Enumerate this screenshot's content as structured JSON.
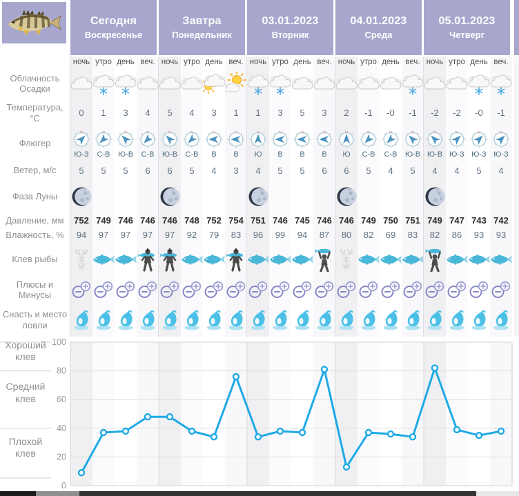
{
  "colors": {
    "header_purple": "#a7a7ce",
    "accent_blue": "#1fa9e5",
    "fish_teal": "#49b7d8",
    "plusminus_purple": "#8787c8",
    "grid_gray": "#d8d8d8"
  },
  "times": [
    "ночь",
    "утро",
    "день",
    "веч."
  ],
  "labels": {
    "clouds": [
      "Облачность",
      "Осадки"
    ],
    "temperature": [
      "Температура,",
      "°С"
    ],
    "vane": [
      "Флюгер"
    ],
    "wind": [
      "Ветер, м/с"
    ],
    "moon": [
      "Фаза Луны"
    ],
    "pressure": [
      "Давление, мм"
    ],
    "humidity": [
      "Влажность, %"
    ],
    "bite": [
      "Клев рыбы"
    ],
    "plusminus": [
      "Плюсы и",
      "Минусы"
    ],
    "tackle": [
      "Снасть и место",
      "ловли"
    ]
  },
  "days": [
    {
      "title": "Сегодня",
      "subtitle": "Воскресенье",
      "clouds": [
        "cloud",
        "cloud-snow",
        "cloud-snow",
        "cloud"
      ],
      "temperature": [
        "0",
        "1",
        "3",
        "4"
      ],
      "wind_direction": [
        "Ю-З",
        "С-В",
        "Ю-В",
        "С-В"
      ],
      "wind_speed": [
        "5",
        "5",
        "5",
        "6"
      ],
      "moon_phase_col": 0,
      "pressure": [
        "752",
        "749",
        "746",
        "746"
      ],
      "humidity": [
        "94",
        "97",
        "97",
        "97"
      ],
      "fish_bite": [
        "crayfish",
        "fish",
        "fish",
        "angler-carry"
      ]
    },
    {
      "title": "Завтра",
      "subtitle": "Понедельник",
      "clouds": [
        "cloud",
        "cloud",
        "cloud-sun",
        "sun-cloud"
      ],
      "temperature": [
        "5",
        "4",
        "3",
        "1"
      ],
      "wind_direction": [
        "Ю-В",
        "С-В",
        "В",
        "В"
      ],
      "wind_speed": [
        "6",
        "5",
        "4",
        "3"
      ],
      "moon_phase_col": 0,
      "pressure": [
        "746",
        "748",
        "752",
        "754"
      ],
      "humidity": [
        "97",
        "92",
        "79",
        "83"
      ],
      "fish_bite": [
        "angler-carry",
        "fish",
        "fish",
        "angler-carry"
      ]
    },
    {
      "title": "03.01.2023",
      "subtitle": "Вторник",
      "clouds": [
        "cloud-snow",
        "cloud-snow",
        "cloud",
        "cloud"
      ],
      "temperature": [
        "1",
        "3",
        "5",
        "3"
      ],
      "wind_direction": [
        "Ю",
        "В",
        "В",
        "В"
      ],
      "wind_speed": [
        "4",
        "5",
        "5",
        "6"
      ],
      "moon_phase_col": 0,
      "pressure": [
        "751",
        "746",
        "745",
        "746"
      ],
      "humidity": [
        "96",
        "99",
        "94",
        "87"
      ],
      "fish_bite": [
        "fish",
        "fish",
        "fish",
        "angler-trophy"
      ]
    },
    {
      "title": "04.01.2023",
      "subtitle": "Среда",
      "clouds": [
        "cloud",
        "cloud",
        "cloud",
        "cloud-snow"
      ],
      "temperature": [
        "2",
        "-1",
        "-0",
        "-1"
      ],
      "wind_direction": [
        "Ю",
        "С-В",
        "С-В",
        "Ю-В"
      ],
      "wind_speed": [
        "6",
        "5",
        "4",
        "5"
      ],
      "moon_phase_col": 0,
      "pressure": [
        "746",
        "749",
        "750",
        "751"
      ],
      "humidity": [
        "80",
        "82",
        "69",
        "83"
      ],
      "fish_bite": [
        "crayfish",
        "fish",
        "fish",
        "fish"
      ]
    },
    {
      "title": "05.01.2023",
      "subtitle": "Четверг",
      "clouds": [
        "cloud",
        "cloud",
        "cloud-snow",
        "cloud-snow"
      ],
      "temperature": [
        "-2",
        "-2",
        "-0",
        "-1"
      ],
      "wind_direction": [
        "Ю-В",
        "Ю-З",
        "Ю-З",
        "Ю-З"
      ],
      "wind_speed": [
        "4",
        "4",
        "5",
        "4"
      ],
      "moon_phase_col": 0,
      "pressure": [
        "749",
        "747",
        "743",
        "742"
      ],
      "humidity": [
        "82",
        "86",
        "93",
        "93"
      ],
      "fish_bite": [
        "angler-trophy",
        "fish",
        "fish",
        "fish"
      ]
    }
  ],
  "chart_data": {
    "type": "line",
    "title": "",
    "series": [
      {
        "name": "Клев рыбы",
        "values": [
          9,
          37,
          38,
          48,
          48,
          38,
          34,
          76,
          34,
          38,
          37,
          81,
          13,
          37,
          36,
          34,
          82,
          39,
          35,
          38
        ]
      }
    ],
    "x_count": 20,
    "ylim": [
      0,
      100
    ],
    "yticks": [
      0,
      20,
      40,
      60,
      80,
      100
    ],
    "zone_labels": [
      [
        "Хороший",
        "клев"
      ],
      [
        "Средний",
        "клев"
      ],
      [
        "Плохой",
        "клев"
      ]
    ],
    "zone_bounds": [
      [
        80,
        100
      ],
      [
        40,
        80
      ],
      [
        0,
        40
      ]
    ],
    "line_color": "#1fa9e5",
    "marker": "circle",
    "grid": true,
    "legend": "none"
  }
}
